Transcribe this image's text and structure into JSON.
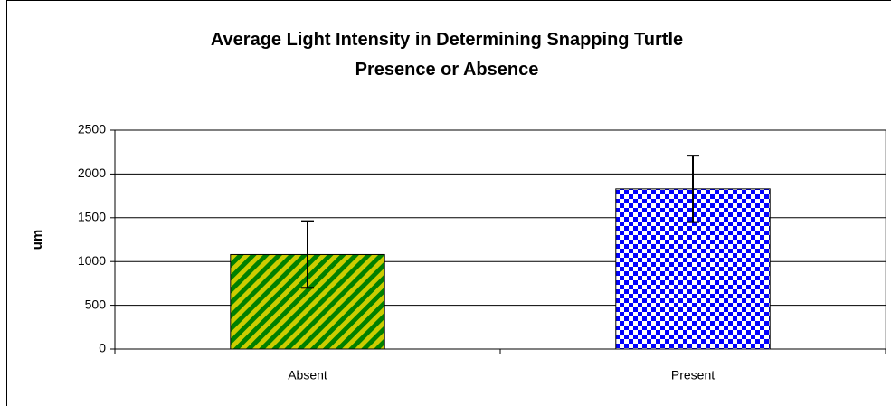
{
  "chart_data": {
    "type": "bar",
    "title": "Average Light Intensity in Determining Snapping Turtle Presence or Absence",
    "y_label": "um",
    "categories": [
      "Absent",
      "Present"
    ],
    "values": [
      1080,
      1830
    ],
    "errors": [
      380,
      380
    ],
    "colors": [
      [
        "#008000",
        "#cccc00"
      ],
      [
        "#0000ff",
        "#ffffff"
      ]
    ],
    "ylim": [
      0,
      2500
    ],
    "yticks": [
      0,
      500,
      1000,
      1500,
      2000,
      2500
    ],
    "grid": true
  }
}
